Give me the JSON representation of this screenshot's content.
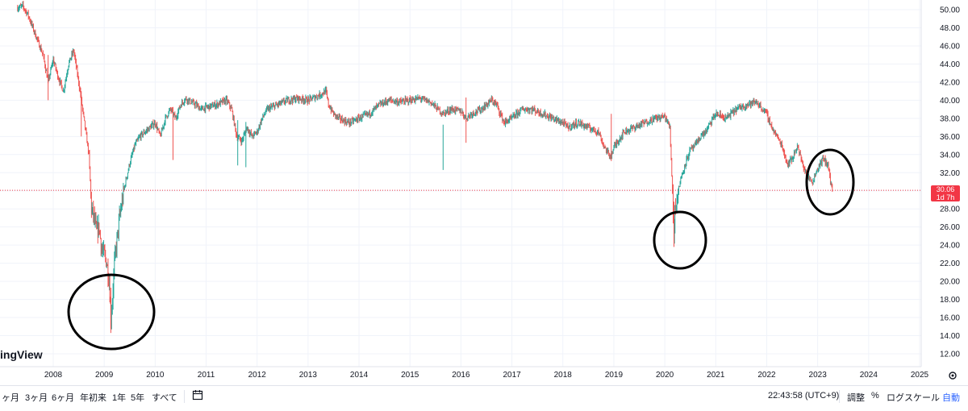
{
  "toolbar": {
    "ranges": [
      "ヶ月",
      "3ヶ月",
      "6ヶ月",
      "年初来",
      "1年",
      "5年",
      "すべて"
    ],
    "time": "22:43:58 (UTC+9)",
    "adjust": "調整",
    "percent": "%",
    "log_scale": "ログスケール",
    "auto": "自動"
  },
  "logo_text": "ingView",
  "current_price": {
    "value": "30.06",
    "countdown": "1d 7h",
    "color": "#f23645"
  },
  "colors": {
    "up": "#26a69a",
    "down": "#ef5350",
    "grid": "#f0f3fa"
  },
  "chart_data": {
    "type": "candlestick",
    "y_ticks": [
      "12.00",
      "14.00",
      "16.00",
      "18.00",
      "20.00",
      "22.00",
      "24.00",
      "26.00",
      "28.00",
      "30.00",
      "32.00",
      "34.00",
      "36.00",
      "38.00",
      "40.00",
      "42.00",
      "44.00",
      "46.00",
      "48.00",
      "50.00"
    ],
    "x_ticks": [
      "2008",
      "2009",
      "2010",
      "2011",
      "2012",
      "2013",
      "2014",
      "2015",
      "2016",
      "2017",
      "2018",
      "2019",
      "2020",
      "2021",
      "2022",
      "2023",
      "2024",
      "2025"
    ],
    "ylim": [
      10.4,
      50.7
    ],
    "xlim": [
      2007.25,
      2025.45
    ],
    "price_series": [
      [
        2007.3,
        50.2
      ],
      [
        2007.4,
        50.4
      ],
      [
        2007.5,
        49.5
      ],
      [
        2007.6,
        48.0
      ],
      [
        2007.7,
        46.5
      ],
      [
        2007.8,
        45.0
      ],
      [
        2007.9,
        42.0
      ],
      [
        2008.0,
        44.5
      ],
      [
        2008.1,
        42.5
      ],
      [
        2008.2,
        41.0
      ],
      [
        2008.3,
        44.0
      ],
      [
        2008.4,
        45.5
      ],
      [
        2008.5,
        42.0
      ],
      [
        2008.6,
        38.0
      ],
      [
        2008.7,
        34.0
      ],
      [
        2008.75,
        28.0
      ],
      [
        2008.8,
        27.0
      ],
      [
        2008.85,
        25.5
      ],
      [
        2008.9,
        26.0
      ],
      [
        2008.95,
        23.5
      ],
      [
        2009.0,
        23.0
      ],
      [
        2009.05,
        22.0
      ],
      [
        2009.1,
        20.0
      ],
      [
        2009.13,
        16.0
      ],
      [
        2009.16,
        18.0
      ],
      [
        2009.2,
        22.0
      ],
      [
        2009.3,
        27.0
      ],
      [
        2009.4,
        30.5
      ],
      [
        2009.5,
        33.0
      ],
      [
        2009.6,
        35.0
      ],
      [
        2009.7,
        36.0
      ],
      [
        2009.8,
        36.5
      ],
      [
        2009.9,
        37.0
      ],
      [
        2010.0,
        37.5
      ],
      [
        2010.1,
        36.0
      ],
      [
        2010.2,
        38.0
      ],
      [
        2010.3,
        39.0
      ],
      [
        2010.4,
        38.0
      ],
      [
        2010.5,
        39.5
      ],
      [
        2010.6,
        40.2
      ],
      [
        2010.7,
        39.8
      ],
      [
        2010.8,
        39.5
      ],
      [
        2010.9,
        39.0
      ],
      [
        2011.0,
        39.2
      ],
      [
        2011.2,
        39.5
      ],
      [
        2011.4,
        40.0
      ],
      [
        2011.5,
        39.0
      ],
      [
        2011.6,
        36.0
      ],
      [
        2011.7,
        35.5
      ],
      [
        2011.8,
        37.0
      ],
      [
        2011.9,
        36.0
      ],
      [
        2012.0,
        36.5
      ],
      [
        2012.1,
        38.0
      ],
      [
        2012.2,
        39.0
      ],
      [
        2012.4,
        39.5
      ],
      [
        2012.6,
        40.0
      ],
      [
        2012.8,
        40.2
      ],
      [
        2013.0,
        40.0
      ],
      [
        2013.2,
        40.5
      ],
      [
        2013.35,
        41.0
      ],
      [
        2013.4,
        39.5
      ],
      [
        2013.5,
        38.5
      ],
      [
        2013.6,
        38.0
      ],
      [
        2013.8,
        37.5
      ],
      [
        2014.0,
        38.0
      ],
      [
        2014.2,
        38.5
      ],
      [
        2014.4,
        39.5
      ],
      [
        2014.6,
        40.0
      ],
      [
        2014.8,
        39.8
      ],
      [
        2015.0,
        40.0
      ],
      [
        2015.2,
        40.2
      ],
      [
        2015.4,
        39.8
      ],
      [
        2015.55,
        39.0
      ],
      [
        2015.65,
        38.5
      ],
      [
        2015.8,
        39.0
      ],
      [
        2016.0,
        38.8
      ],
      [
        2016.1,
        38.0
      ],
      [
        2016.2,
        38.5
      ],
      [
        2016.4,
        39.0
      ],
      [
        2016.6,
        40.0
      ],
      [
        2016.7,
        39.5
      ],
      [
        2016.85,
        37.5
      ],
      [
        2017.0,
        38.0
      ],
      [
        2017.2,
        39.0
      ],
      [
        2017.4,
        39.0
      ],
      [
        2017.6,
        38.5
      ],
      [
        2017.8,
        38.0
      ],
      [
        2018.0,
        37.5
      ],
      [
        2018.1,
        37.0
      ],
      [
        2018.3,
        37.5
      ],
      [
        2018.5,
        37.0
      ],
      [
        2018.7,
        36.5
      ],
      [
        2018.8,
        35.0
      ],
      [
        2018.9,
        34.0
      ],
      [
        2018.95,
        33.8
      ],
      [
        2019.0,
        34.8
      ],
      [
        2019.2,
        36.5
      ],
      [
        2019.4,
        37.0
      ],
      [
        2019.6,
        37.5
      ],
      [
        2019.8,
        38.0
      ],
      [
        2020.0,
        38.2
      ],
      [
        2020.1,
        37.0
      ],
      [
        2020.15,
        30.0
      ],
      [
        2020.18,
        25.0
      ],
      [
        2020.2,
        28.0
      ],
      [
        2020.3,
        31.0
      ],
      [
        2020.4,
        33.0
      ],
      [
        2020.5,
        34.5
      ],
      [
        2020.6,
        35.0
      ],
      [
        2020.7,
        36.0
      ],
      [
        2020.8,
        36.5
      ],
      [
        2020.9,
        37.5
      ],
      [
        2021.0,
        38.5
      ],
      [
        2021.2,
        38.0
      ],
      [
        2021.4,
        39.0
      ],
      [
        2021.6,
        39.5
      ],
      [
        2021.8,
        39.8
      ],
      [
        2022.0,
        38.5
      ],
      [
        2022.1,
        37.0
      ],
      [
        2022.2,
        36.0
      ],
      [
        2022.3,
        35.0
      ],
      [
        2022.4,
        33.0
      ],
      [
        2022.5,
        33.5
      ],
      [
        2022.6,
        35.0
      ],
      [
        2022.7,
        33.0
      ],
      [
        2022.8,
        31.5
      ],
      [
        2022.9,
        31.0
      ],
      [
        2023.0,
        32.5
      ],
      [
        2023.1,
        33.5
      ],
      [
        2023.2,
        33.0
      ],
      [
        2023.25,
        31.0
      ],
      [
        2023.3,
        30.0
      ]
    ],
    "spikes": [
      [
        2011.62,
        32.8
      ],
      [
        2011.78,
        32.6
      ],
      [
        2015.65,
        32.3
      ],
      [
        2016.1,
        35.3
      ],
      [
        2010.35,
        33.4
      ],
      [
        2018.95,
        33.5
      ],
      [
        2020.18,
        23.8
      ],
      [
        2009.13,
        14.3
      ],
      [
        2007.9,
        40.0
      ],
      [
        2008.55,
        36.0
      ]
    ],
    "current_price": 30.06
  }
}
